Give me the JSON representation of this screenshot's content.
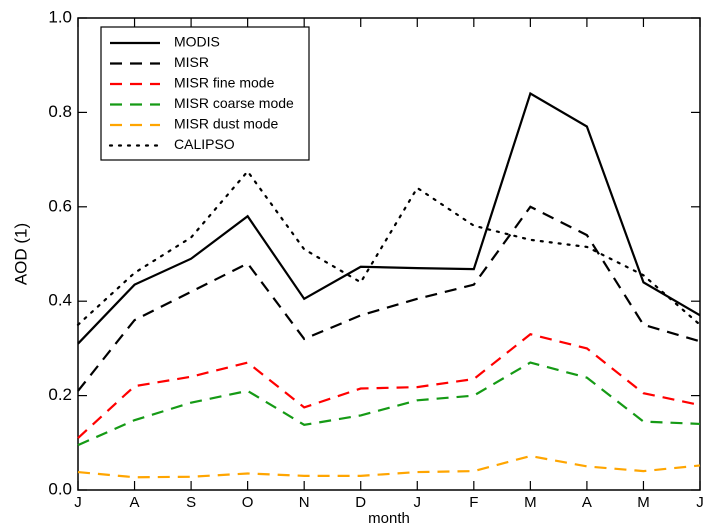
{
  "chart_data": {
    "type": "line",
    "x_label": "month",
    "y_label": "AOD (1)",
    "categories": [
      "J",
      "A",
      "S",
      "O",
      "N",
      "D",
      "J",
      "F",
      "M",
      "A",
      "M",
      "J"
    ],
    "ylim": [
      0,
      1.0
    ],
    "yticks": [
      {
        "value": 0,
        "label": "0.0"
      },
      0.2,
      0.4,
      0.6,
      0.8,
      {
        "value": 1.0,
        "label": "1.0"
      }
    ],
    "legend": "upper left",
    "series": [
      {
        "name": "MODIS",
        "color": "#000000",
        "dash": "solid",
        "values": [
          0.31,
          0.435,
          0.49,
          0.58,
          0.405,
          0.473,
          0.47,
          0.468,
          0.84,
          0.77,
          0.44,
          0.37
        ]
      },
      {
        "name": "MISR",
        "color": "#000000",
        "dash": "dashed",
        "values": [
          0.21,
          0.36,
          0.42,
          0.48,
          0.32,
          0.37,
          0.405,
          0.435,
          0.6,
          0.54,
          0.35,
          0.315
        ]
      },
      {
        "name": "MISR fine mode",
        "color": "#ff0000",
        "dash": "dashed",
        "values": [
          0.11,
          0.22,
          0.24,
          0.27,
          0.175,
          0.215,
          0.218,
          0.235,
          0.33,
          0.3,
          0.205,
          0.18
        ]
      },
      {
        "name": "MISR coarse mode",
        "color": "#159a15",
        "dash": "dashed",
        "values": [
          0.095,
          0.148,
          0.185,
          0.21,
          0.138,
          0.158,
          0.19,
          0.2,
          0.27,
          0.238,
          0.145,
          0.14
        ]
      },
      {
        "name": "MISR dust mode",
        "color": "#ffa500",
        "dash": "dashed",
        "values": [
          0.038,
          0.027,
          0.028,
          0.035,
          0.03,
          0.03,
          0.038,
          0.04,
          0.072,
          0.05,
          0.04,
          0.052
        ]
      },
      {
        "name": "CALIPSO",
        "color": "#000000",
        "dash": "dotted",
        "values": [
          0.35,
          0.46,
          0.535,
          0.675,
          0.51,
          0.44,
          0.64,
          0.56,
          0.53,
          0.515,
          0.455,
          0.35
        ]
      }
    ]
  }
}
